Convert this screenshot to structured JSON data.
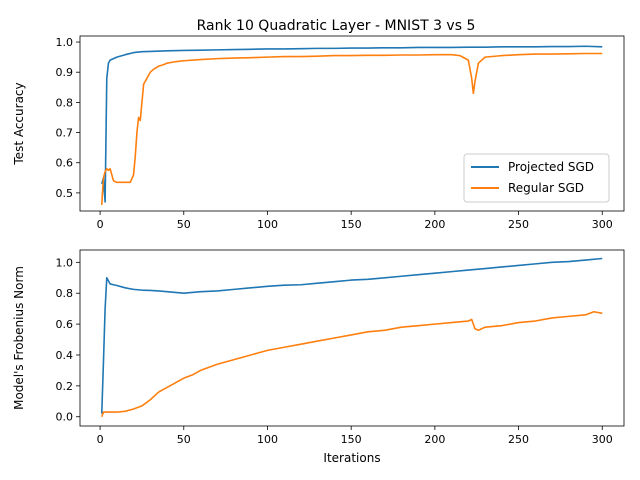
{
  "figure": {
    "title": "Rank 10 Quadratic Layer - MNIST 3 vs 5"
  },
  "colors": {
    "projected": "#1f77b4",
    "regular": "#ff7f0e"
  },
  "chart_data": [
    {
      "type": "line",
      "title": "Rank 10 Quadratic Layer - MNIST 3 vs 5",
      "xlabel": "",
      "ylabel": "Test Accuracy",
      "xlim": [
        -12,
        313
      ],
      "ylim": [
        0.44,
        1.02
      ],
      "xticks": [
        0,
        50,
        100,
        150,
        200,
        250,
        300
      ],
      "yticks": [
        0.5,
        0.6,
        0.7,
        0.8,
        0.9,
        1.0
      ],
      "ytick_labels": [
        "0.5",
        "0.6",
        "0.7",
        "0.8",
        "0.9",
        "1.0"
      ],
      "grid": false,
      "legend": "lower-right",
      "series": [
        {
          "name": "Projected SGD",
          "x": [
            1,
            2,
            3,
            4,
            5,
            6,
            8,
            10,
            15,
            20,
            25,
            30,
            40,
            50,
            60,
            70,
            80,
            90,
            100,
            110,
            120,
            130,
            140,
            150,
            160,
            170,
            180,
            190,
            200,
            210,
            220,
            230,
            240,
            250,
            260,
            270,
            280,
            290,
            300
          ],
          "y": [
            0.53,
            0.55,
            0.47,
            0.88,
            0.93,
            0.94,
            0.945,
            0.95,
            0.958,
            0.965,
            0.968,
            0.969,
            0.971,
            0.972,
            0.973,
            0.974,
            0.975,
            0.976,
            0.977,
            0.977,
            0.978,
            0.979,
            0.979,
            0.98,
            0.98,
            0.981,
            0.981,
            0.982,
            0.982,
            0.982,
            0.983,
            0.983,
            0.984,
            0.984,
            0.984,
            0.985,
            0.985,
            0.986,
            0.984
          ]
        },
        {
          "name": "Regular SGD",
          "x": [
            1,
            2,
            3,
            4,
            5,
            6,
            7,
            8,
            10,
            12,
            14,
            16,
            18,
            20,
            21,
            22,
            23,
            24,
            25,
            26,
            28,
            30,
            32,
            35,
            38,
            40,
            45,
            50,
            60,
            70,
            80,
            90,
            100,
            110,
            120,
            130,
            140,
            150,
            160,
            170,
            180,
            190,
            200,
            210,
            215,
            220,
            222,
            223,
            224,
            226,
            230,
            240,
            250,
            260,
            270,
            280,
            290,
            300
          ],
          "y": [
            0.46,
            0.55,
            0.57,
            0.58,
            0.575,
            0.58,
            0.56,
            0.54,
            0.535,
            0.535,
            0.535,
            0.535,
            0.535,
            0.56,
            0.62,
            0.7,
            0.75,
            0.74,
            0.8,
            0.86,
            0.88,
            0.9,
            0.91,
            0.92,
            0.925,
            0.93,
            0.935,
            0.938,
            0.942,
            0.945,
            0.947,
            0.948,
            0.95,
            0.952,
            0.952,
            0.953,
            0.955,
            0.955,
            0.956,
            0.956,
            0.957,
            0.957,
            0.958,
            0.958,
            0.955,
            0.94,
            0.88,
            0.83,
            0.87,
            0.93,
            0.95,
            0.955,
            0.958,
            0.96,
            0.96,
            0.961,
            0.962,
            0.962
          ]
        }
      ]
    },
    {
      "type": "line",
      "title": "",
      "xlabel": "Iterations",
      "ylabel": "Model's Frobenius Norm",
      "xlim": [
        -12,
        313
      ],
      "ylim": [
        -0.06,
        1.08
      ],
      "xticks": [
        0,
        50,
        100,
        150,
        200,
        250,
        300
      ],
      "yticks": [
        0.0,
        0.2,
        0.4,
        0.6,
        0.8,
        1.0
      ],
      "ytick_labels": [
        "0.0",
        "0.2",
        "0.4",
        "0.6",
        "0.8",
        "1.0"
      ],
      "grid": false,
      "series": [
        {
          "name": "Projected SGD",
          "x": [
            1,
            2,
            3,
            4,
            5,
            6,
            8,
            10,
            15,
            20,
            25,
            30,
            35,
            40,
            45,
            50,
            60,
            70,
            80,
            90,
            100,
            110,
            120,
            130,
            140,
            150,
            160,
            170,
            180,
            190,
            200,
            210,
            220,
            230,
            240,
            250,
            260,
            270,
            280,
            290,
            300
          ],
          "y": [
            0.02,
            0.35,
            0.7,
            0.9,
            0.88,
            0.86,
            0.855,
            0.85,
            0.835,
            0.825,
            0.82,
            0.818,
            0.815,
            0.81,
            0.805,
            0.8,
            0.81,
            0.815,
            0.825,
            0.835,
            0.845,
            0.852,
            0.855,
            0.865,
            0.875,
            0.885,
            0.89,
            0.9,
            0.91,
            0.92,
            0.93,
            0.94,
            0.95,
            0.96,
            0.97,
            0.98,
            0.99,
            1.0,
            1.005,
            1.015,
            1.025
          ]
        },
        {
          "name": "Regular SGD",
          "x": [
            1,
            2,
            3,
            5,
            10,
            15,
            20,
            25,
            30,
            35,
            40,
            45,
            50,
            55,
            60,
            70,
            80,
            90,
            100,
            110,
            120,
            130,
            140,
            150,
            160,
            170,
            180,
            190,
            200,
            210,
            215,
            220,
            222,
            223,
            224,
            226,
            230,
            240,
            250,
            260,
            270,
            280,
            290,
            295,
            300
          ],
          "y": [
            0.0,
            0.03,
            0.03,
            0.03,
            0.03,
            0.035,
            0.05,
            0.07,
            0.11,
            0.16,
            0.19,
            0.22,
            0.25,
            0.27,
            0.3,
            0.34,
            0.37,
            0.4,
            0.43,
            0.45,
            0.47,
            0.49,
            0.51,
            0.53,
            0.55,
            0.56,
            0.58,
            0.59,
            0.6,
            0.61,
            0.615,
            0.62,
            0.63,
            0.6,
            0.57,
            0.56,
            0.58,
            0.59,
            0.61,
            0.62,
            0.64,
            0.65,
            0.66,
            0.68,
            0.67
          ]
        }
      ]
    }
  ]
}
